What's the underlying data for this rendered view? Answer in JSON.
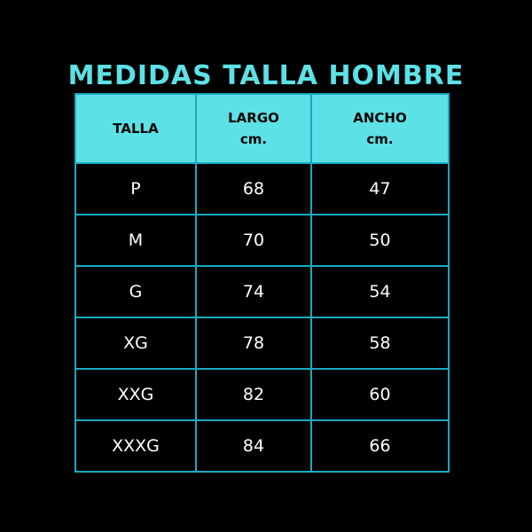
{
  "title": "MEDIDAS TALLA HOMBRE",
  "colors": {
    "accent": "#5ce1e6",
    "border": "#19a9c2",
    "background": "#000000"
  },
  "headers": [
    {
      "line1": "TALLA",
      "line2": ""
    },
    {
      "line1": "LARGO",
      "line2": "cm."
    },
    {
      "line1": "ANCHO",
      "line2": "cm."
    }
  ],
  "rows": [
    [
      "P",
      "68",
      "47"
    ],
    [
      "M",
      "70",
      "50"
    ],
    [
      "G",
      "74",
      "54"
    ],
    [
      "XG",
      "78",
      "58"
    ],
    [
      "XXG",
      "82",
      "60"
    ],
    [
      "XXXG",
      "84",
      "66"
    ]
  ]
}
